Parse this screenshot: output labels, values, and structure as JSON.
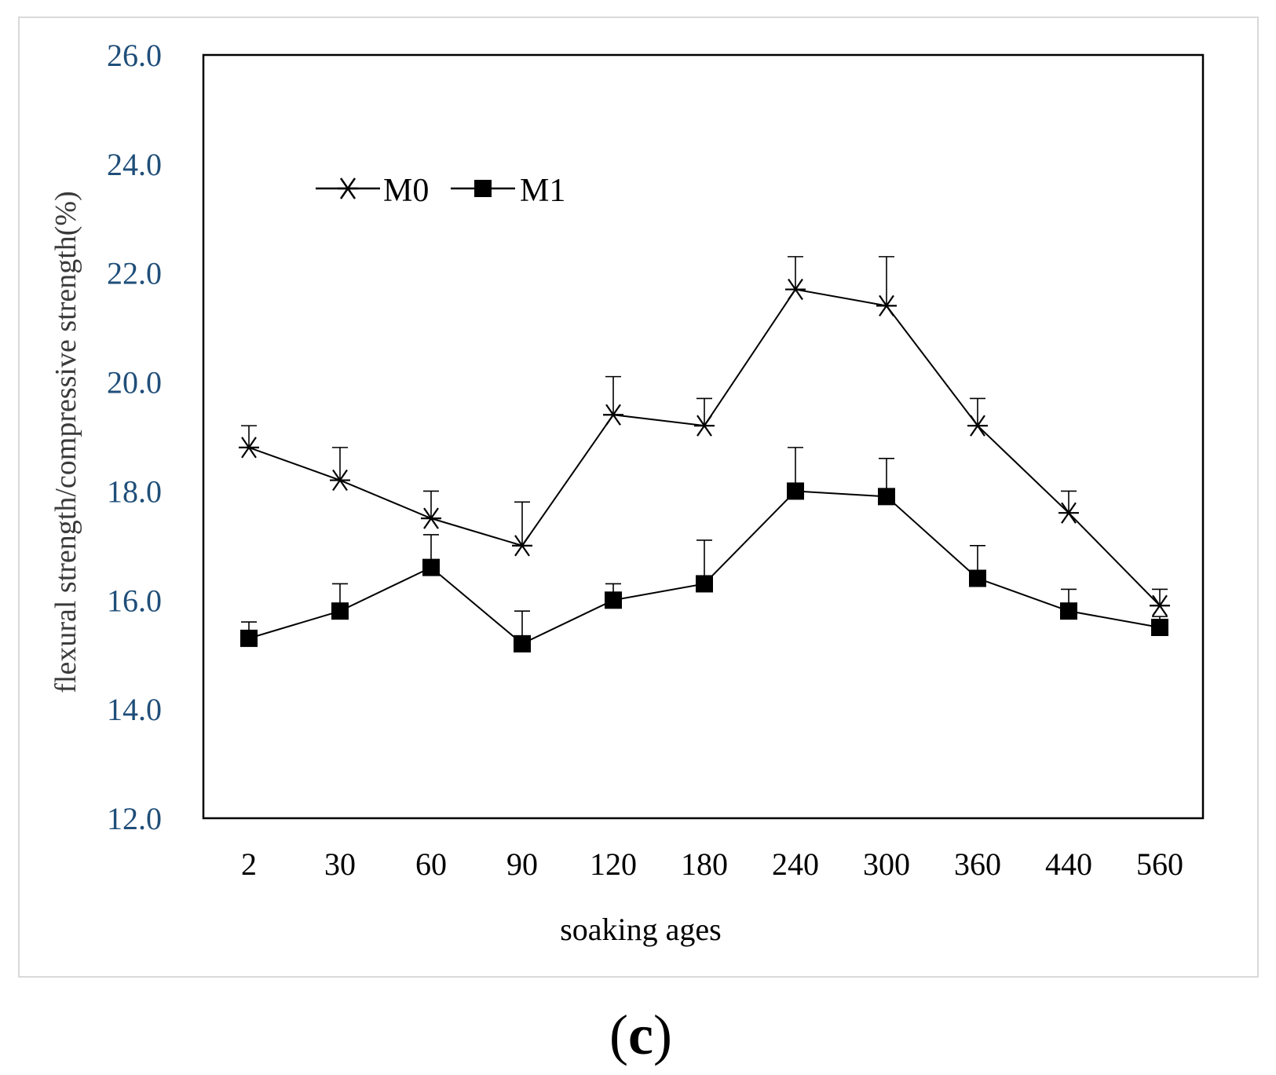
{
  "chart_data": {
    "type": "line",
    "categories": [
      "2",
      "30",
      "60",
      "90",
      "120",
      "180",
      "240",
      "300",
      "360",
      "440",
      "560"
    ],
    "series": [
      {
        "name": "M0",
        "marker": "star",
        "values": [
          18.8,
          18.2,
          17.5,
          17.0,
          19.4,
          19.2,
          21.7,
          21.4,
          19.2,
          17.6,
          15.9
        ],
        "error": [
          0.4,
          0.6,
          0.5,
          0.8,
          0.7,
          0.5,
          0.6,
          0.9,
          0.5,
          0.4,
          0.3
        ]
      },
      {
        "name": "M1",
        "marker": "square",
        "values": [
          15.3,
          15.8,
          16.6,
          15.2,
          16.0,
          16.3,
          18.0,
          17.9,
          16.4,
          15.8,
          15.5
        ],
        "error": [
          0.3,
          0.5,
          0.6,
          0.6,
          0.3,
          0.8,
          0.8,
          0.7,
          0.6,
          0.4,
          0.2
        ]
      }
    ],
    "ylim": [
      12.0,
      26.0
    ],
    "yticks": [
      "12.0",
      "14.0",
      "16.0",
      "18.0",
      "20.0",
      "22.0",
      "24.0",
      "26.0"
    ],
    "xlabel": "soaking ages",
    "ylabel": "flexural strength/compressive strength(%)",
    "legend_position": "top-left",
    "grid": false,
    "panel_label": {
      "open": "(",
      "letter": "c",
      "close": ")"
    },
    "colors": {
      "line": "#000000",
      "tick_y": "#1f4e79",
      "frame": "#d9d9d9"
    }
  }
}
